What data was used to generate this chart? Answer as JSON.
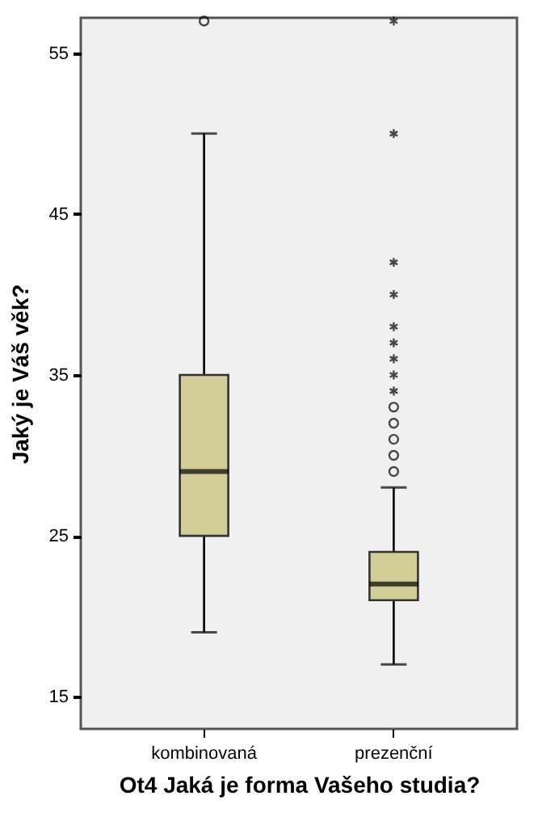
{
  "chart_data": {
    "type": "box",
    "xlabel": "Ot4 Jaká je forma Vašeho studia?",
    "ylabel": "Jaký je Váš věk?",
    "categories": [
      "kombinovaná",
      "prezenční"
    ],
    "series": [
      {
        "color": "#d3ce98",
        "boxes": [
          {
            "low": 19,
            "q1": 25,
            "median": 29,
            "q3": 35,
            "high": 50,
            "outliers": [
              57
            ]
          },
          {
            "low": 17,
            "q1": 21,
            "median": 22,
            "q3": 24,
            "high": 28,
            "outliers": [
              29,
              30,
              31,
              32,
              33,
              34,
              35,
              36,
              37,
              38,
              40,
              42,
              50,
              57
            ]
          }
        ]
      }
    ],
    "ylim": [
      13,
      57.2
    ],
    "yticks": [
      15,
      25,
      35,
      45,
      55
    ],
    "grid": false
  }
}
